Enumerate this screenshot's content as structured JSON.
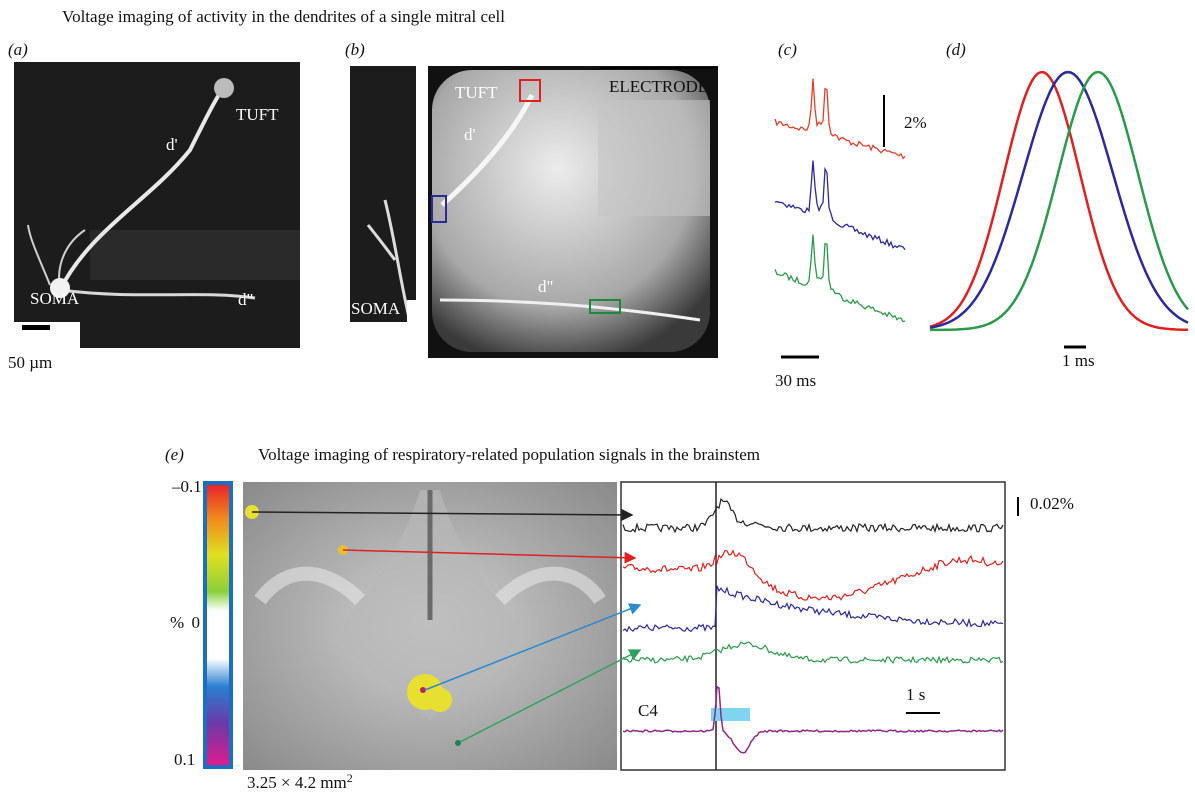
{
  "header": {
    "title": "Voltage imaging of activity in the dendrites of a single mitral cell"
  },
  "panels": {
    "a": {
      "label": "(a)",
      "tuft": "TUFT",
      "d1": "d'",
      "soma": "SOMA",
      "d2": "d\"",
      "scale_bar": "50 µm"
    },
    "b": {
      "label": "(b)",
      "tuft": "TUFT",
      "d1": "d'",
      "soma": "SOMA",
      "d2": "d\"",
      "electrode": "ELECTRODE"
    },
    "c": {
      "label": "(c)",
      "v_scale": "2%",
      "t_scale": "30 ms"
    },
    "d": {
      "label": "(d)",
      "t_scale": "1 ms"
    },
    "e": {
      "label": "(e)",
      "title": "Voltage imaging of respiratory-related population signals in the brainstem",
      "colorbar": {
        "top": "–0.1",
        "unit": "%",
        "mid": "0",
        "bottom": "0.1"
      },
      "v_scale": "0.02%",
      "t_scale": "1 s",
      "c4": "C4",
      "area": "3.25 × 4.2 mm",
      "area_exp": "2"
    }
  }
}
